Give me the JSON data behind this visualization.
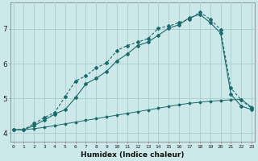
{
  "title": "",
  "xlabel": "Humidex (Indice chaleur)",
  "ylabel": "",
  "bg_color": "#cce8e8",
  "grid_color": "#aacccc",
  "line_color": "#1a6b6b",
  "x_ticks": [
    0,
    1,
    2,
    3,
    4,
    5,
    6,
    7,
    8,
    9,
    10,
    11,
    12,
    13,
    14,
    15,
    16,
    17,
    18,
    19,
    20,
    21,
    22,
    23
  ],
  "y_ticks": [
    4,
    5,
    6,
    7
  ],
  "xlim": [
    -0.3,
    23.3
  ],
  "ylim": [
    3.75,
    7.75
  ],
  "line1_x": [
    0,
    1,
    2,
    3,
    4,
    5,
    6,
    7,
    8,
    9,
    10,
    11,
    12,
    13,
    14,
    15,
    16,
    17,
    18,
    19,
    20,
    21,
    22,
    23
  ],
  "line1_y": [
    4.1,
    4.1,
    4.13,
    4.17,
    4.22,
    4.27,
    4.32,
    4.37,
    4.42,
    4.47,
    4.52,
    4.57,
    4.62,
    4.67,
    4.72,
    4.77,
    4.82,
    4.86,
    4.89,
    4.92,
    4.94,
    4.96,
    4.97,
    4.75
  ],
  "line2_x": [
    0,
    1,
    2,
    3,
    4,
    5,
    6,
    7,
    8,
    9,
    10,
    11,
    12,
    13,
    14,
    15,
    16,
    17,
    18,
    19,
    20,
    21,
    22,
    23
  ],
  "line2_y": [
    4.1,
    4.1,
    4.28,
    4.45,
    4.6,
    5.05,
    5.5,
    5.65,
    5.88,
    6.02,
    6.38,
    6.52,
    6.62,
    6.72,
    7.02,
    7.08,
    7.18,
    7.28,
    7.48,
    7.28,
    6.98,
    5.3,
    4.95,
    4.72
  ],
  "line3_x": [
    0,
    1,
    2,
    3,
    4,
    5,
    6,
    7,
    8,
    9,
    10,
    11,
    12,
    13,
    14,
    15,
    16,
    17,
    18,
    19,
    20,
    21,
    22,
    23
  ],
  "line3_y": [
    4.1,
    4.1,
    4.22,
    4.38,
    4.55,
    4.68,
    5.02,
    5.42,
    5.58,
    5.78,
    6.08,
    6.28,
    6.52,
    6.62,
    6.82,
    7.02,
    7.12,
    7.32,
    7.42,
    7.18,
    6.88,
    5.12,
    4.78,
    4.68
  ]
}
